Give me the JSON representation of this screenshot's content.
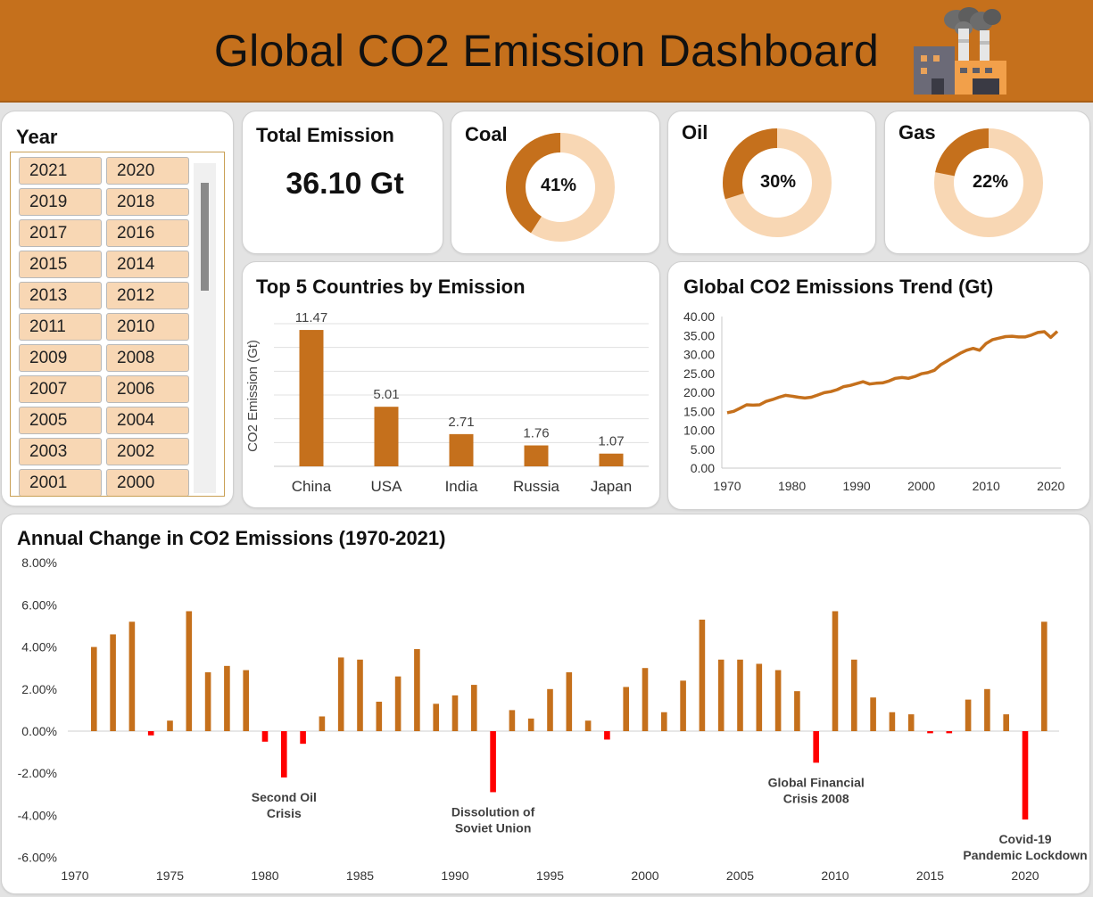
{
  "header": {
    "title": "Global CO2 Emission Dashboard"
  },
  "colors": {
    "accent": "#c5701c",
    "light": "#f8d7b4",
    "negative": "#ff0000"
  },
  "slicer": {
    "title": "Year",
    "years": [
      "2021",
      "2020",
      "2019",
      "2018",
      "2017",
      "2016",
      "2015",
      "2014",
      "2013",
      "2012",
      "2011",
      "2010",
      "2009",
      "2008",
      "2007",
      "2006",
      "2005",
      "2004",
      "2003",
      "2002",
      "2001",
      "2000"
    ]
  },
  "kpi": {
    "title": "Total Emission",
    "value": "36.10 Gt"
  },
  "donuts": [
    {
      "title": "Coal",
      "label": "41%",
      "value": 41
    },
    {
      "title": "Oil",
      "label": "30%",
      "value": 30
    },
    {
      "title": "Gas",
      "label": "22%",
      "value": 22
    }
  ],
  "chart_data": [
    {
      "type": "bar",
      "title": "Top 5 Countries by Emission",
      "ylabel": "CO2 Emission (Gt)",
      "categories": [
        "China",
        "USA",
        "India",
        "Russia",
        "Japan"
      ],
      "values": [
        11.47,
        5.01,
        2.71,
        1.76,
        1.07
      ],
      "labels": [
        "11.47",
        "5.01",
        "2.71",
        "1.76",
        "1.07"
      ],
      "ylim": [
        0,
        12
      ],
      "grid": true
    },
    {
      "type": "line",
      "title": "Global CO2 Emissions Trend (Gt)",
      "ylim": [
        0,
        40
      ],
      "yticks": [
        "0.00",
        "5.00",
        "10.00",
        "15.00",
        "20.00",
        "25.00",
        "30.00",
        "35.00",
        "40.00"
      ],
      "xticks": [
        "1970",
        "1980",
        "1990",
        "2000",
        "2010",
        "2020"
      ],
      "grid": false,
      "x": [
        1970,
        1971,
        1972,
        1973,
        1974,
        1975,
        1976,
        1977,
        1978,
        1979,
        1980,
        1981,
        1982,
        1983,
        1984,
        1985,
        1986,
        1987,
        1988,
        1989,
        1990,
        1991,
        1992,
        1993,
        1994,
        1995,
        1996,
        1997,
        1998,
        1999,
        2000,
        2001,
        2002,
        2003,
        2004,
        2005,
        2006,
        2007,
        2008,
        2009,
        2010,
        2011,
        2012,
        2013,
        2014,
        2015,
        2016,
        2017,
        2018,
        2019,
        2020,
        2021
      ],
      "y": [
        14.6,
        15.0,
        15.8,
        16.7,
        16.6,
        16.7,
        17.6,
        18.1,
        18.7,
        19.2,
        19.0,
        18.7,
        18.5,
        18.7,
        19.3,
        19.9,
        20.2,
        20.7,
        21.5,
        21.8,
        22.3,
        22.8,
        22.2,
        22.4,
        22.5,
        23.0,
        23.7,
        23.9,
        23.7,
        24.2,
        24.9,
        25.2,
        25.8,
        27.3,
        28.3,
        29.3,
        30.3,
        31.1,
        31.6,
        31.1,
        32.9,
        33.9,
        34.3,
        34.7,
        34.8,
        34.6,
        34.6,
        35.1,
        35.8,
        36.0,
        34.5,
        36.1
      ]
    },
    {
      "type": "bar",
      "title": "Annual Change in CO2 Emissions (1970-2021)",
      "ylim": [
        -6,
        8
      ],
      "yticks": [
        "-6.00%",
        "-4.00%",
        "-2.00%",
        "0.00%",
        "2.00%",
        "4.00%",
        "6.00%",
        "8.00%"
      ],
      "xticks": [
        "1970",
        "1975",
        "1980",
        "1985",
        "1990",
        "1995",
        "2000",
        "2005",
        "2010",
        "2015",
        "2020"
      ],
      "x": [
        1971,
        1972,
        1973,
        1974,
        1975,
        1976,
        1977,
        1978,
        1979,
        1980,
        1981,
        1982,
        1983,
        1984,
        1985,
        1986,
        1987,
        1988,
        1989,
        1990,
        1991,
        1992,
        1993,
        1994,
        1995,
        1996,
        1997,
        1998,
        1999,
        2000,
        2001,
        2002,
        2003,
        2004,
        2005,
        2006,
        2007,
        2008,
        2009,
        2010,
        2011,
        2012,
        2013,
        2014,
        2015,
        2016,
        2017,
        2018,
        2019,
        2020,
        2021
      ],
      "values": [
        4.0,
        4.6,
        5.2,
        -0.2,
        0.5,
        5.7,
        2.8,
        3.1,
        2.9,
        -0.5,
        -2.2,
        -0.6,
        0.7,
        3.5,
        3.4,
        1.4,
        2.6,
        3.9,
        1.3,
        1.7,
        2.2,
        -2.9,
        1.0,
        0.6,
        2.0,
        2.8,
        0.5,
        -0.4,
        2.1,
        3.0,
        0.9,
        2.4,
        5.3,
        3.4,
        3.4,
        3.2,
        2.9,
        1.9,
        -1.5,
        5.7,
        3.4,
        1.6,
        0.9,
        0.8,
        -0.1,
        -0.1,
        1.5,
        2.0,
        0.8,
        -4.2,
        5.2
      ],
      "annotations": [
        {
          "year": 1981,
          "lines": [
            "Second Oil",
            "Crisis"
          ]
        },
        {
          "year": 1992,
          "lines": [
            "Dissolution of",
            "Soviet Union"
          ]
        },
        {
          "year": 2009,
          "lines": [
            "Global Financial",
            "Crisis 2008"
          ]
        },
        {
          "year": 2020,
          "lines": [
            "Covid-19",
            "Pandemic Lockdown"
          ]
        }
      ]
    }
  ]
}
